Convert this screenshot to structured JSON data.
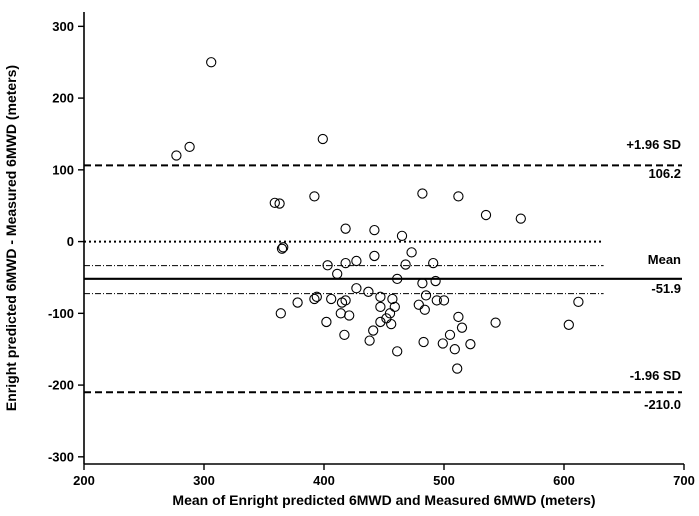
{
  "chart_data": {
    "type": "scatter",
    "xlabel": "Mean of Enright predicted 6MWD and Measured 6MWD (meters)",
    "ylabel": "Enright predicted 6MWD - Measured 6MWD (meters)",
    "xlim": [
      200,
      700
    ],
    "ylim": [
      -310,
      320
    ],
    "xticks": [
      200,
      300,
      400,
      500,
      600,
      700
    ],
    "yticks": [
      -300,
      -200,
      -100,
      0,
      100,
      200,
      300
    ],
    "x_line_end": 633,
    "reference_lines": [
      {
        "name": "upper-loa-line",
        "y": 106.2,
        "style": "dashed"
      },
      {
        "name": "zero-line",
        "y": 0,
        "style": "dotted"
      },
      {
        "name": "mean-upper-ci-line",
        "y": -33.5,
        "style": "dashdot"
      },
      {
        "name": "mean-line",
        "y": -51.9,
        "style": "solid"
      },
      {
        "name": "mean-lower-ci-line",
        "y": -72.5,
        "style": "dashdot"
      },
      {
        "name": "lower-loa-line",
        "y": -210.0,
        "style": "dashed"
      }
    ],
    "annotations": {
      "upper_label": "+1.96 SD",
      "upper_value": "106.2",
      "mean_label": "Mean",
      "mean_value": "-51.9",
      "lower_label": "-1.96 SD",
      "lower_value": "-210.0"
    },
    "points": [
      [
        306,
        250
      ],
      [
        288,
        132
      ],
      [
        277,
        120
      ],
      [
        399,
        143
      ],
      [
        359,
        54
      ],
      [
        363,
        53
      ],
      [
        366,
        -8
      ],
      [
        365,
        -10
      ],
      [
        392,
        63
      ],
      [
        482,
        67
      ],
      [
        512,
        63
      ],
      [
        535,
        37
      ],
      [
        564,
        32
      ],
      [
        418,
        18
      ],
      [
        442,
        16
      ],
      [
        465,
        8
      ],
      [
        403,
        -33
      ],
      [
        427,
        -27
      ],
      [
        418,
        -30
      ],
      [
        442,
        -20
      ],
      [
        473,
        -15
      ],
      [
        468,
        -32
      ],
      [
        411,
        -45
      ],
      [
        461,
        -52
      ],
      [
        491,
        -30
      ],
      [
        493,
        -55
      ],
      [
        437,
        -70
      ],
      [
        447,
        -77
      ],
      [
        427,
        -65
      ],
      [
        482,
        -58
      ],
      [
        485,
        -75
      ],
      [
        378,
        -85
      ],
      [
        392,
        -80
      ],
      [
        394,
        -77
      ],
      [
        406,
        -80
      ],
      [
        415,
        -85
      ],
      [
        418,
        -82
      ],
      [
        457,
        -80
      ],
      [
        479,
        -88
      ],
      [
        484,
        -95
      ],
      [
        494,
        -82
      ],
      [
        500,
        -82
      ],
      [
        364,
        -100
      ],
      [
        421,
        -103
      ],
      [
        414,
        -100
      ],
      [
        402,
        -112
      ],
      [
        447,
        -91
      ],
      [
        455,
        -100
      ],
      [
        459,
        -91
      ],
      [
        447,
        -112
      ],
      [
        456,
        -115
      ],
      [
        452,
        -107
      ],
      [
        417,
        -130
      ],
      [
        441,
        -124
      ],
      [
        438,
        -138
      ],
      [
        461,
        -153
      ],
      [
        483,
        -140
      ],
      [
        499,
        -142
      ],
      [
        505,
        -130
      ],
      [
        512,
        -105
      ],
      [
        515,
        -120
      ],
      [
        509,
        -150
      ],
      [
        522,
        -143
      ],
      [
        511,
        -177
      ],
      [
        543,
        -113
      ],
      [
        604,
        -116
      ],
      [
        612,
        -84
      ]
    ]
  }
}
